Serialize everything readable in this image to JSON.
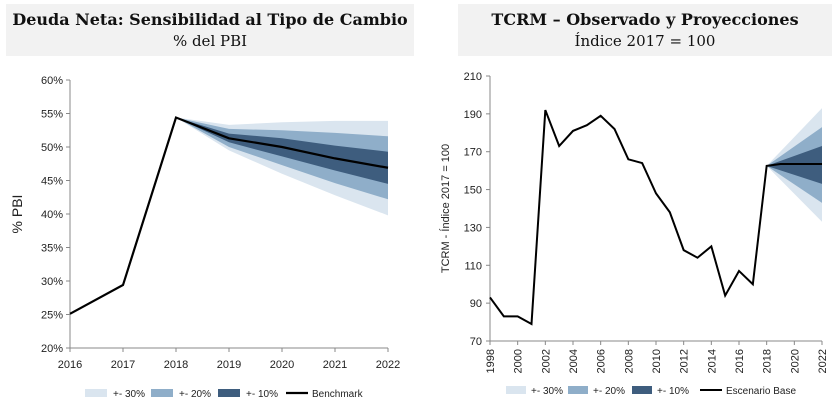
{
  "colors": {
    "band30": "#dae5ef",
    "band20": "#8faec9",
    "band10": "#3e5d7e",
    "line": "#000000",
    "axis": "#888888"
  },
  "chart_data": [
    {
      "type": "line",
      "title": "Deuda Neta: Sensibilidad al Tipo de Cambio",
      "subtitle": "% del PBI",
      "ylabel": "% PBI",
      "xlabel": "",
      "x": [
        2016,
        2017,
        2018,
        2019,
        2020,
        2021,
        2022
      ],
      "ylim": [
        20,
        60
      ],
      "yticks": [
        20,
        25,
        30,
        35,
        40,
        45,
        50,
        55,
        60
      ],
      "ytick_labels": [
        "20%",
        "25%",
        "30%",
        "35%",
        "40%",
        "45%",
        "50%",
        "55%",
        "60%"
      ],
      "xticks": [
        "2016",
        "2017",
        "2018",
        "2019",
        "2020",
        "2021",
        "2022"
      ],
      "grid": false,
      "legend_position": "bottom",
      "legend": [
        "+- 30%",
        "+- 20%",
        "+- 10%",
        "Benchmark"
      ],
      "series": [
        {
          "name": "Benchmark",
          "x": [
            2016,
            2017,
            2018,
            2019,
            2020,
            2021,
            2022
          ],
          "values": [
            25.1,
            29.4,
            54.4,
            51.3,
            50.0,
            48.3,
            46.9
          ]
        }
      ],
      "bands": [
        {
          "name": "+- 30%",
          "x": [
            2018,
            2019,
            2020,
            2021,
            2022
          ],
          "lower": [
            54.4,
            49.5,
            46.0,
            42.8,
            39.8
          ],
          "upper": [
            54.4,
            53.3,
            53.7,
            53.9,
            53.9
          ]
        },
        {
          "name": "+- 20%",
          "x": [
            2018,
            2019,
            2020,
            2021,
            2022
          ],
          "lower": [
            54.4,
            50.0,
            47.3,
            44.6,
            42.2
          ],
          "upper": [
            54.4,
            52.7,
            52.5,
            52.1,
            51.6
          ]
        },
        {
          "name": "+- 10%",
          "x": [
            2018,
            2019,
            2020,
            2021,
            2022
          ],
          "lower": [
            54.4,
            50.7,
            48.6,
            46.5,
            44.5
          ],
          "upper": [
            54.4,
            52.0,
            51.3,
            50.2,
            49.3
          ]
        }
      ]
    },
    {
      "type": "line",
      "title": "TCRM – Observado y Proyecciones",
      "subtitle": "Índice 2017 = 100",
      "ylabel": "TCRM - Índice 2017 = 100",
      "xlabel": "",
      "xlim": [
        1998,
        2022
      ],
      "ylim": [
        70,
        210
      ],
      "yticks": [
        70,
        90,
        110,
        130,
        150,
        170,
        190,
        210
      ],
      "xticks": [
        "1998",
        "2000",
        "2002",
        "2004",
        "2006",
        "2008",
        "2010",
        "2012",
        "2014",
        "2016",
        "2018",
        "2020",
        "2022"
      ],
      "grid": false,
      "legend_position": "bottom",
      "legend": [
        "+- 30%",
        "+- 20%",
        "+- 10%",
        "Escenario Base"
      ],
      "series": [
        {
          "name": "Escenario Base",
          "x": [
            1998,
            1999,
            2000,
            2001,
            2002,
            2003,
            2004,
            2005,
            2006,
            2007,
            2008,
            2009,
            2010,
            2011,
            2012,
            2013,
            2014,
            2015,
            2016,
            2017,
            2018,
            2019,
            2020,
            2021,
            2022
          ],
          "values": [
            93,
            83,
            83,
            79,
            192,
            173,
            181,
            184,
            189,
            182,
            166,
            164,
            148,
            138,
            118,
            114,
            120,
            94,
            107,
            100,
            162.5,
            163.5,
            163.5,
            163.5,
            163.5
          ]
        }
      ],
      "bands": [
        {
          "name": "+- 30%",
          "x": [
            2018,
            2022
          ],
          "lower": [
            162.5,
            133
          ],
          "upper": [
            162.5,
            193
          ]
        },
        {
          "name": "+- 20%",
          "x": [
            2018,
            2022
          ],
          "lower": [
            162.5,
            143
          ],
          "upper": [
            162.5,
            183
          ]
        },
        {
          "name": "+- 10%",
          "x": [
            2018,
            2022
          ],
          "lower": [
            162.5,
            153
          ],
          "upper": [
            162.5,
            173
          ]
        }
      ]
    }
  ]
}
